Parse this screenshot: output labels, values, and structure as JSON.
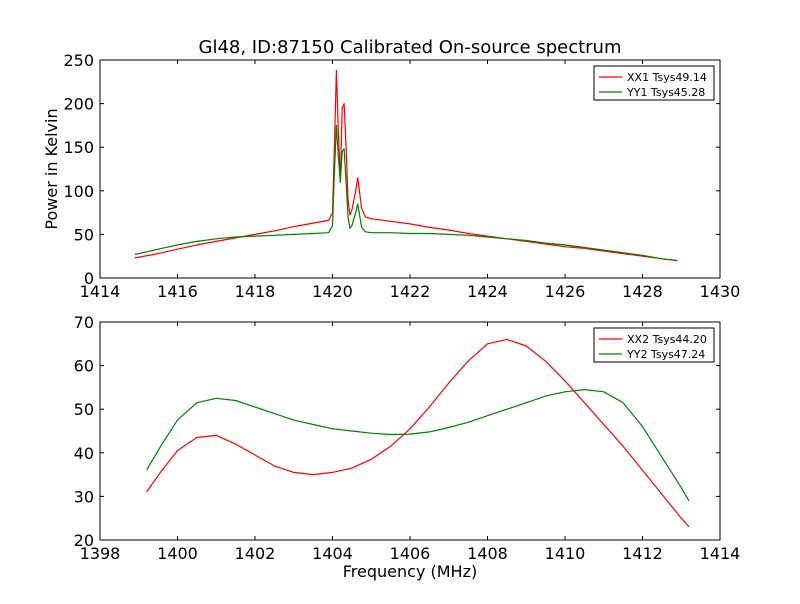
{
  "figure": {
    "title": "Gl48, ID:87150 Calibrated On-source spectrum"
  },
  "chart_data": [
    {
      "type": "line",
      "title": "Gl48, ID:87150 Calibrated On-source spectrum",
      "xlabel": "",
      "ylabel": "Power in Kelvin",
      "xlim": [
        1414,
        1430
      ],
      "ylim": [
        0,
        250
      ],
      "xticks": [
        1414,
        1416,
        1418,
        1420,
        1422,
        1424,
        1426,
        1428,
        1430
      ],
      "yticks": [
        0,
        50,
        100,
        150,
        200,
        250
      ],
      "grid": false,
      "legend_position": "top-right",
      "series": [
        {
          "name": "XX1 Tsys49.14",
          "color": "#ff0000",
          "x": [
            1414.9,
            1415.5,
            1416,
            1416.5,
            1417,
            1417.5,
            1418,
            1418.5,
            1419,
            1419.5,
            1419.9,
            1420.0,
            1420.05,
            1420.1,
            1420.15,
            1420.2,
            1420.25,
            1420.3,
            1420.35,
            1420.4,
            1420.45,
            1420.5,
            1420.6,
            1420.65,
            1420.7,
            1420.75,
            1420.85,
            1421,
            1421.5,
            1422,
            1422.5,
            1423,
            1423.5,
            1424,
            1424.5,
            1425,
            1425.5,
            1426,
            1426.5,
            1427,
            1427.5,
            1428,
            1428.5,
            1428.9
          ],
          "values": [
            23,
            28,
            33,
            38,
            42,
            46,
            50,
            54,
            59,
            63,
            66,
            75,
            150,
            238,
            170,
            110,
            195,
            200,
            150,
            90,
            72,
            78,
            100,
            115,
            98,
            80,
            70,
            68,
            65,
            62,
            58,
            55,
            51,
            48,
            45,
            42,
            39,
            36,
            34,
            31,
            28,
            25,
            22,
            20
          ]
        },
        {
          "name": "YY1 Tsys45.28",
          "color": "#008000",
          "x": [
            1414.9,
            1415.5,
            1416,
            1416.5,
            1417,
            1417.5,
            1418,
            1418.5,
            1419,
            1419.5,
            1419.9,
            1420.0,
            1420.05,
            1420.1,
            1420.15,
            1420.2,
            1420.25,
            1420.3,
            1420.35,
            1420.4,
            1420.45,
            1420.5,
            1420.6,
            1420.65,
            1420.7,
            1420.75,
            1420.85,
            1421,
            1421.5,
            1422,
            1422.5,
            1423,
            1423.5,
            1424,
            1424.5,
            1425,
            1425.5,
            1426,
            1426.5,
            1427,
            1427.5,
            1428,
            1428.5,
            1428.9
          ],
          "values": [
            27,
            33,
            38,
            42,
            45,
            47,
            48,
            49,
            50,
            51,
            52,
            60,
            120,
            175,
            140,
            110,
            145,
            148,
            110,
            70,
            57,
            60,
            75,
            85,
            72,
            58,
            53,
            52,
            52,
            51,
            51,
            50,
            49,
            47,
            45,
            43,
            40,
            38,
            35,
            32,
            29,
            26,
            22,
            20
          ]
        }
      ]
    },
    {
      "type": "line",
      "title": "",
      "xlabel": "Frequency (MHz)",
      "ylabel": "",
      "xlim": [
        1398,
        1414
      ],
      "ylim": [
        20,
        70
      ],
      "xticks": [
        1398,
        1400,
        1402,
        1404,
        1406,
        1408,
        1410,
        1412,
        1414
      ],
      "yticks": [
        20,
        30,
        40,
        50,
        60,
        70
      ],
      "grid": false,
      "legend_position": "top-right",
      "series": [
        {
          "name": "XX2 Tsys44.20",
          "color": "#ff0000",
          "x": [
            1399.2,
            1399.6,
            1400,
            1400.5,
            1401,
            1401.5,
            1402,
            1402.5,
            1403,
            1403.5,
            1404,
            1404.5,
            1405,
            1405.5,
            1406,
            1406.5,
            1407,
            1407.5,
            1408,
            1408.5,
            1409,
            1409.5,
            1410,
            1410.5,
            1411,
            1411.5,
            1412,
            1412.5,
            1413,
            1413.2
          ],
          "values": [
            31,
            36,
            40.5,
            43.5,
            44,
            42,
            39.5,
            37,
            35.5,
            35,
            35.5,
            36.5,
            38.5,
            41.5,
            45.5,
            50.5,
            56,
            61,
            65,
            66,
            64.5,
            61,
            56.5,
            51.5,
            46.5,
            41.5,
            36,
            30.5,
            25,
            23
          ]
        },
        {
          "name": "YY2 Tsys47.24",
          "color": "#008000",
          "x": [
            1399.2,
            1399.6,
            1400,
            1400.5,
            1401,
            1401.5,
            1402,
            1402.5,
            1403,
            1403.5,
            1404,
            1404.5,
            1405,
            1405.5,
            1406,
            1406.5,
            1407,
            1407.5,
            1408,
            1408.5,
            1409,
            1409.5,
            1410,
            1410.5,
            1411,
            1411.5,
            1412,
            1412.5,
            1413,
            1413.2
          ],
          "values": [
            36,
            42,
            47.5,
            51.5,
            52.5,
            52,
            50.5,
            49,
            47.5,
            46.5,
            45.5,
            45,
            44.5,
            44.2,
            44.3,
            44.8,
            45.8,
            47,
            48.5,
            50,
            51.5,
            53,
            54,
            54.5,
            54,
            51.5,
            46,
            39,
            32,
            29
          ]
        }
      ]
    }
  ]
}
